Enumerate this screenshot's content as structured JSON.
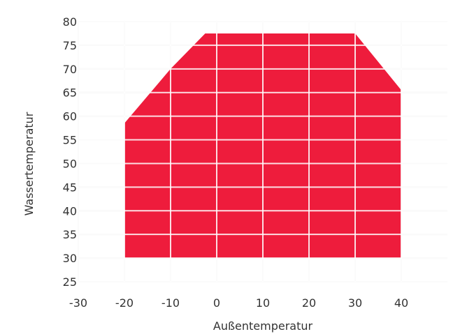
{
  "chart_data": {
    "type": "area",
    "xlabel": "Außentemperatur",
    "ylabel": "Wassertemperatur",
    "x_ticks": [
      -30,
      -20,
      -10,
      0,
      10,
      20,
      30,
      40
    ],
    "y_ticks": [
      25,
      30,
      35,
      40,
      45,
      50,
      55,
      60,
      65,
      70,
      75,
      80
    ],
    "xlim": [
      -30,
      50
    ],
    "ylim": [
      25,
      80
    ],
    "grid": true,
    "fill_color": "#ee1c3c",
    "series": [
      {
        "x": [
          -20,
          -20,
          -10,
          -2.5,
          30,
          40,
          40
        ],
        "y": [
          30,
          58.5,
          70,
          77.5,
          77.5,
          65.5,
          30
        ]
      }
    ]
  }
}
